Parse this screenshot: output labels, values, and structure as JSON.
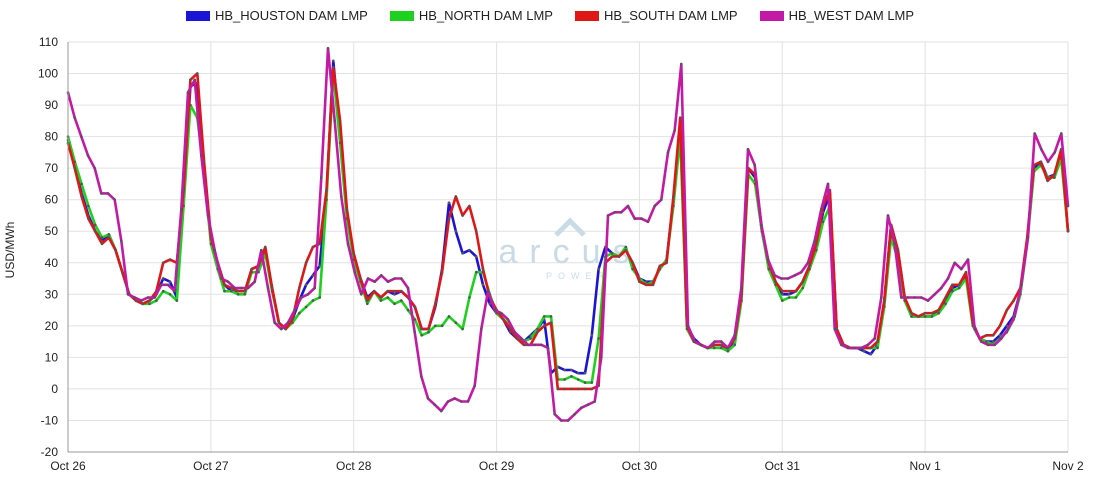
{
  "chart_data": {
    "type": "line",
    "title": "",
    "xlabel": "",
    "ylabel": "USD/MWh",
    "ylim": [
      -20,
      110
    ],
    "yticks": [
      -20,
      -10,
      0,
      10,
      20,
      30,
      40,
      50,
      60,
      70,
      80,
      90,
      100,
      110
    ],
    "xlim": [
      0,
      7
    ],
    "xtick_labels": [
      "Oct 26",
      "Oct 27",
      "Oct 28",
      "Oct 29",
      "Oct 30",
      "Oct 31",
      "Nov 1",
      "Nov 2"
    ],
    "grid": true,
    "legend_position": "top",
    "watermark": {
      "brand": "arcus",
      "sub": "POWER"
    },
    "series": [
      {
        "name": "HB_HOUSTON DAM LMP",
        "color": "#1a14d6",
        "values": [
          79,
          70,
          62,
          55,
          50,
          47,
          49,
          44,
          37,
          30,
          28,
          27,
          28,
          30,
          35,
          34,
          29,
          62,
          96,
          97,
          70,
          48,
          40,
          33,
          31,
          31,
          31,
          38,
          39,
          44,
          32,
          21,
          19,
          22,
          28,
          33,
          36,
          39,
          62,
          104,
          80,
          56,
          42,
          35,
          29,
          31,
          29,
          31,
          30,
          31,
          29,
          26,
          19,
          19,
          26,
          38,
          59,
          50,
          43,
          44,
          42,
          33,
          27,
          24,
          22,
          18,
          16,
          15,
          17,
          19,
          22,
          5,
          7,
          6,
          6,
          5,
          5,
          17,
          38,
          45,
          43,
          42,
          44,
          40,
          35,
          34,
          34,
          38,
          41,
          60,
          84,
          20,
          16,
          14,
          13,
          14,
          14,
          12,
          16,
          30,
          70,
          67,
          50,
          40,
          34,
          30,
          30,
          31,
          34,
          39,
          46,
          56,
          62,
          19,
          14,
          13,
          13,
          12,
          11,
          14,
          28,
          52,
          44,
          29,
          23,
          23,
          23,
          23,
          25,
          28,
          32,
          33,
          36,
          21,
          16,
          15,
          15,
          17,
          20,
          23,
          31,
          47,
          70,
          72,
          67,
          68,
          75,
          50
        ]
      },
      {
        "name": "HB_NORTH DAM LMP",
        "color": "#1ed11e",
        "values": [
          80,
          72,
          65,
          58,
          52,
          48,
          49,
          44,
          37,
          30,
          28,
          27,
          27,
          28,
          31,
          30,
          28,
          58,
          90,
          86,
          68,
          46,
          38,
          31,
          31,
          30,
          30,
          37,
          37,
          43,
          31,
          21,
          19,
          21,
          24,
          26,
          28,
          29,
          60,
          100,
          78,
          54,
          41,
          34,
          27,
          31,
          28,
          29,
          27,
          28,
          25,
          22,
          17,
          18,
          20,
          20,
          23,
          21,
          19,
          29,
          37,
          37,
          30,
          24,
          22,
          20,
          17,
          15,
          16,
          19,
          23,
          23,
          3,
          3,
          4,
          3,
          2,
          2,
          16,
          42,
          43,
          42,
          45,
          38,
          35,
          33,
          34,
          38,
          41,
          58,
          80,
          19,
          15,
          14,
          13,
          13,
          13,
          12,
          14,
          28,
          68,
          65,
          50,
          38,
          33,
          28,
          29,
          29,
          32,
          38,
          44,
          53,
          58,
          19,
          14,
          13,
          13,
          13,
          13,
          13,
          26,
          48,
          41,
          28,
          23,
          23,
          23,
          23,
          24,
          27,
          31,
          32,
          35,
          20,
          16,
          15,
          14,
          16,
          18,
          22,
          30,
          46,
          69,
          71,
          67,
          67,
          73,
          50
        ]
      },
      {
        "name": "HB_SOUTH DAM LMP",
        "color": "#e01717",
        "values": [
          78,
          70,
          61,
          54,
          50,
          46,
          48,
          44,
          37,
          30,
          28,
          27,
          28,
          31,
          40,
          41,
          40,
          63,
          98,
          100,
          72,
          48,
          40,
          33,
          32,
          31,
          31,
          38,
          39,
          45,
          32,
          21,
          19,
          22,
          32,
          40,
          45,
          46,
          63,
          102,
          85,
          57,
          43,
          35,
          28,
          31,
          29,
          31,
          31,
          31,
          29,
          26,
          19,
          19,
          27,
          37,
          54,
          61,
          55,
          58,
          50,
          38,
          29,
          25,
          22,
          19,
          16,
          14,
          14,
          18,
          20,
          21,
          0,
          0,
          0,
          0,
          0,
          0,
          1,
          40,
          42,
          42,
          44,
          40,
          34,
          33,
          33,
          39,
          40,
          61,
          86,
          20,
          15,
          14,
          13,
          14,
          14,
          13,
          16,
          30,
          70,
          68,
          51,
          40,
          34,
          31,
          31,
          31,
          34,
          39,
          46,
          58,
          63,
          19,
          14,
          13,
          13,
          13,
          13,
          15,
          28,
          52,
          44,
          29,
          24,
          23,
          24,
          24,
          25,
          29,
          33,
          33,
          37,
          21,
          16,
          17,
          17,
          20,
          25,
          28,
          32,
          48,
          71,
          72,
          66,
          68,
          76,
          50
        ]
      },
      {
        "name": "HB_WEST DAM LMP",
        "color": "#c21aa6",
        "values": [
          94,
          86,
          80,
          74,
          70,
          62,
          62,
          60,
          47,
          30,
          29,
          28,
          29,
          29,
          33,
          33,
          31,
          57,
          94,
          98,
          74,
          55,
          44,
          35,
          34,
          32,
          32,
          32,
          34,
          44,
          32,
          21,
          19,
          21,
          25,
          29,
          30,
          32,
          67,
          108,
          85,
          61,
          46,
          37,
          30,
          35,
          34,
          36,
          34,
          35,
          35,
          32,
          18,
          4,
          -3,
          -5,
          -7,
          -4,
          -3,
          -4,
          -4,
          1,
          19,
          31,
          25,
          24,
          22,
          18,
          16,
          14,
          14,
          14,
          13,
          -8,
          -10,
          -10,
          -8,
          -6,
          -5,
          -4,
          10,
          55,
          56,
          56,
          58,
          54,
          54,
          53,
          58,
          60,
          75,
          82,
          103,
          20,
          15,
          14,
          13,
          15,
          15,
          13,
          17,
          32,
          76,
          71,
          52,
          41,
          36,
          35,
          35,
          36,
          37,
          40,
          47,
          57,
          65,
          19,
          14,
          13,
          13,
          13,
          14,
          16,
          29,
          55,
          46,
          29,
          29,
          29,
          29,
          28,
          30,
          32,
          35,
          40,
          38,
          41,
          19,
          15,
          14,
          14,
          16,
          19,
          23,
          33,
          48,
          81,
          76,
          72,
          75,
          81,
          58
        ]
      }
    ]
  }
}
